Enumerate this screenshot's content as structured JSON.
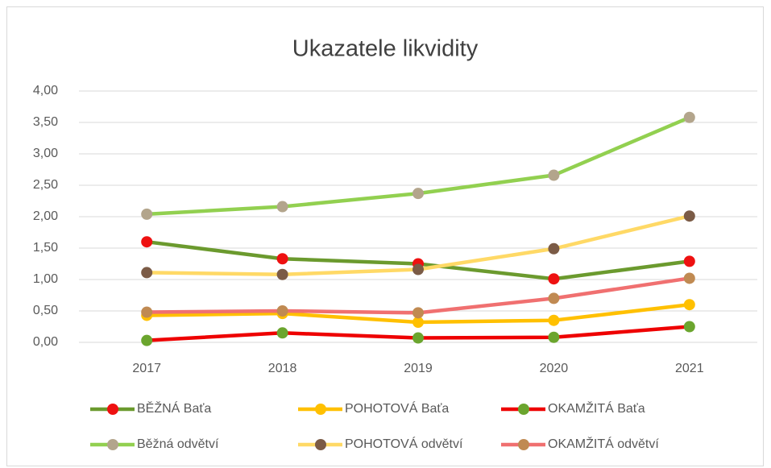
{
  "chart_data": {
    "type": "line",
    "title": "Ukazatele likvidity",
    "categories": [
      "2017",
      "2018",
      "2019",
      "2020",
      "2021"
    ],
    "series": [
      {
        "name": "BĚŽNÁ Baťa",
        "color": "#6b9a2e",
        "marker_color": "#ee1111",
        "values": [
          1.6,
          1.33,
          1.25,
          1.01,
          1.29
        ]
      },
      {
        "name": "POHOTOVÁ Baťa",
        "color": "#ffc000",
        "marker_color": "#ffc000",
        "values": [
          0.43,
          0.46,
          0.32,
          0.35,
          0.6
        ]
      },
      {
        "name": "OKAMŽITÁ Baťa",
        "color": "#ee0000",
        "marker_color": "#6ba52e",
        "values": [
          0.03,
          0.15,
          0.07,
          0.08,
          0.25
        ]
      },
      {
        "name": "Běžná odvětví",
        "color": "#92d050",
        "marker_color": "#b3a58c",
        "values": [
          2.04,
          2.16,
          2.37,
          2.66,
          3.58
        ]
      },
      {
        "name": "POHOTOVÁ odvětví",
        "color": "#ffd966",
        "marker_color": "#7b5b46",
        "values": [
          1.11,
          1.08,
          1.16,
          1.49,
          2.01
        ]
      },
      {
        "name": "OKAMŽITÁ odvětví",
        "color": "#f07070",
        "marker_color": "#c08a52",
        "values": [
          0.48,
          0.5,
          0.47,
          0.7,
          1.02
        ]
      }
    ],
    "ylim": [
      0,
      4
    ],
    "yticks": [
      {
        "value": 0,
        "label": "0,00"
      },
      {
        "value": 0.5,
        "label": "0,50"
      },
      {
        "value": 1,
        "label": "1,00"
      },
      {
        "value": 1.5,
        "label": "1,50"
      },
      {
        "value": 2,
        "label": "2,00"
      },
      {
        "value": 2.5,
        "label": "2,50"
      },
      {
        "value": 3,
        "label": "3,00"
      },
      {
        "value": 3.5,
        "label": "3,50"
      },
      {
        "value": 4,
        "label": "4,00"
      }
    ],
    "grid": true
  }
}
